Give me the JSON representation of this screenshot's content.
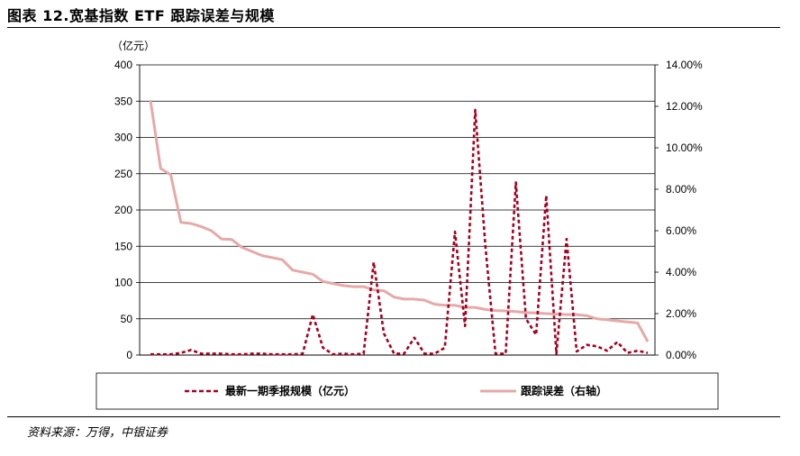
{
  "title": "图表 12.宽基指数 ETF 跟踪误差与规模",
  "source": "资料来源：万得，中银证券",
  "chart_data": {
    "type": "line",
    "y_unit_label": "（亿元）",
    "ylim": [
      0,
      400
    ],
    "y_ticks": [
      "0",
      "50",
      "100",
      "150",
      "200",
      "250",
      "300",
      "350",
      "400"
    ],
    "y2lim": [
      0,
      0.14
    ],
    "y2_ticks": [
      "0.00%",
      "2.00%",
      "4.00%",
      "6.00%",
      "8.00%",
      "10.00%",
      "12.00%",
      "14.00%"
    ],
    "grid": true,
    "legend_position": "bottom",
    "series": [
      {
        "name": "最新一期季报规模（亿元）",
        "axis": "left",
        "style": "dashed",
        "color": "#A50021",
        "values": [
          1,
          1,
          1,
          3,
          7,
          2,
          2,
          2,
          1,
          1,
          2,
          2,
          1,
          1,
          1,
          2,
          56,
          10,
          1,
          2,
          1,
          2,
          128,
          30,
          2,
          2,
          24,
          2,
          2,
          10,
          170,
          40,
          338,
          150,
          2,
          2,
          238,
          50,
          28,
          220,
          2,
          160,
          5,
          14,
          12,
          6,
          18,
          3,
          6,
          3
        ]
      },
      {
        "name": "跟踪误差（右轴）",
        "axis": "right",
        "style": "solid",
        "color": "#E6A9A9",
        "values": [
          0.123,
          0.09,
          0.087,
          0.064,
          0.0635,
          0.062,
          0.06,
          0.056,
          0.0558,
          0.052,
          0.05,
          0.048,
          0.047,
          0.046,
          0.041,
          0.04,
          0.039,
          0.0355,
          0.0345,
          0.0335,
          0.033,
          0.033,
          0.0315,
          0.031,
          0.028,
          0.027,
          0.027,
          0.0265,
          0.0245,
          0.024,
          0.024,
          0.023,
          0.023,
          0.022,
          0.0215,
          0.0213,
          0.021,
          0.0205,
          0.0203,
          0.02,
          0.0198,
          0.0195,
          0.0195,
          0.019,
          0.0175,
          0.017,
          0.0165,
          0.016,
          0.0155,
          0.0065
        ]
      }
    ]
  }
}
